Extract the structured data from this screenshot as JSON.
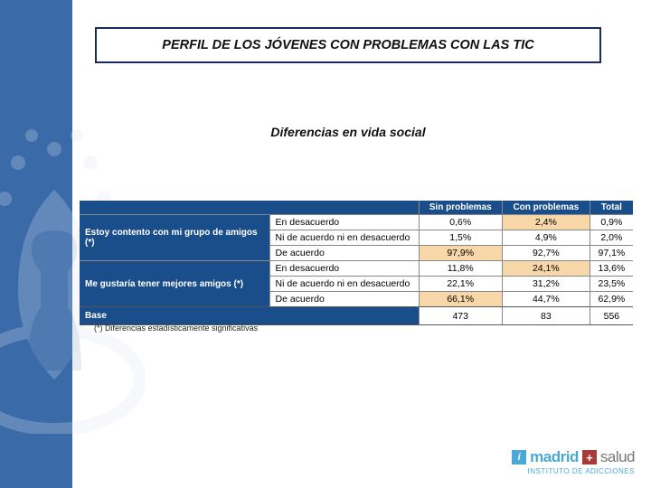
{
  "title": "PERFIL DE LOS JÓVENES CON PROBLEMAS CON LAS TIC",
  "subtitle": "Diferencias en vida social",
  "footnote": "(*) Diferencias estadísticamente significativas",
  "table": {
    "header_bg": "#1a4e8a",
    "header_fg": "#ffffff",
    "highlight_bg": "#f8d7a8",
    "border_color": "#888888",
    "columns": [
      "Sin problemas",
      "Con problemas",
      "Total"
    ],
    "groups": [
      {
        "label": "Estoy contento con mi grupo de amigos (*)",
        "rows": [
          {
            "resp": "En desacuerdo",
            "vals": [
              "0,6%",
              "2,4%",
              "0,9%"
            ],
            "hl": [
              false,
              true,
              false
            ]
          },
          {
            "resp": "Ni de acuerdo ni en desacuerdo",
            "vals": [
              "1,5%",
              "4,9%",
              "2,0%"
            ],
            "hl": [
              false,
              false,
              false
            ]
          },
          {
            "resp": "De acuerdo",
            "vals": [
              "97,9%",
              "92,7%",
              "97,1%"
            ],
            "hl": [
              true,
              false,
              false
            ]
          }
        ]
      },
      {
        "label": "Me gustaría tener mejores amigos (*)",
        "rows": [
          {
            "resp": "En desacuerdo",
            "vals": [
              "11,8%",
              "24,1%",
              "13,6%"
            ],
            "hl": [
              false,
              true,
              false
            ]
          },
          {
            "resp": "Ni de acuerdo ni en desacuerdo",
            "vals": [
              "22,1%",
              "31,2%",
              "23,5%"
            ],
            "hl": [
              false,
              false,
              false
            ]
          },
          {
            "resp": "De acuerdo",
            "vals": [
              "66,1%",
              "44,7%",
              "62,9%"
            ],
            "hl": [
              true,
              false,
              false
            ]
          }
        ]
      }
    ],
    "base": {
      "label": "Base",
      "vals": [
        "473",
        "83",
        "556"
      ]
    }
  },
  "logo": {
    "glyph": "i",
    "text1": "madrid",
    "cross": "+",
    "text2": "salud",
    "sub": "INSTITUTO DE ADICCIONES"
  },
  "colors": {
    "sidebar": "#3a6aa8",
    "title_border": "#1a2b5c"
  }
}
